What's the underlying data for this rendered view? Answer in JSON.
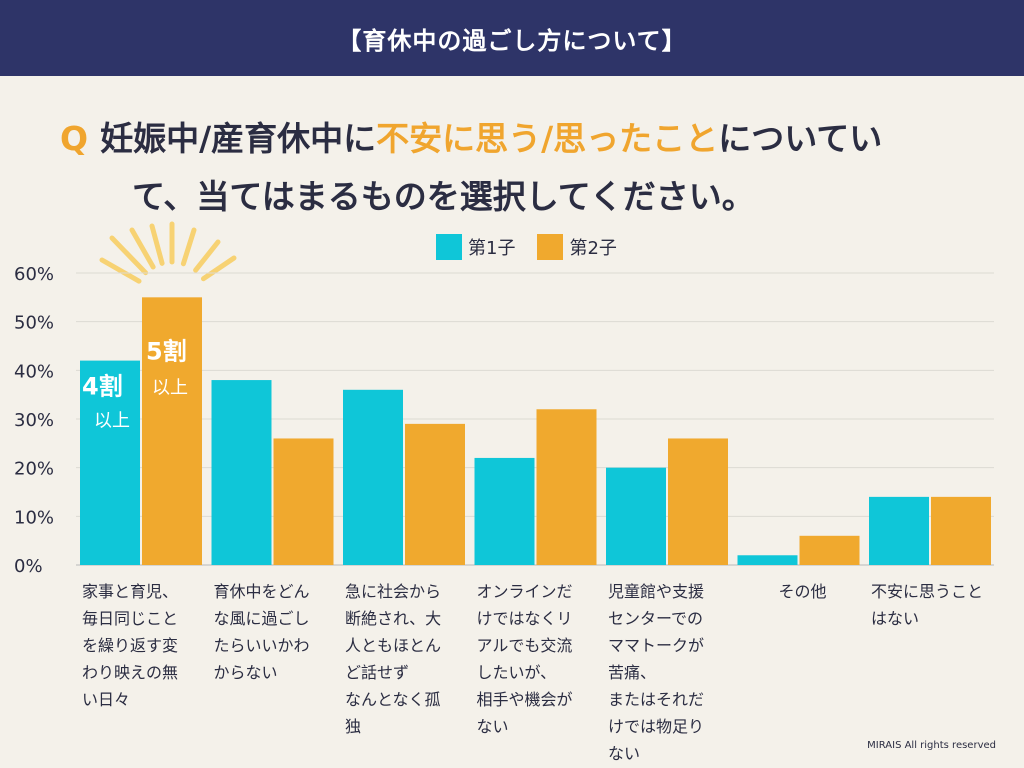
{
  "header": {
    "title": "【育休中の過ごし方について】"
  },
  "question": {
    "mark": "Q",
    "part1": "妊娠中/産育休中に",
    "highlight": "不安に思う/思ったこと",
    "part2": "についてい",
    "line2": "て、当てはまるものを選択してください。"
  },
  "colors": {
    "series1": "#0fc6d8",
    "series2": "#f0a92e",
    "accent": "#f0a52e",
    "banner": "#2e3468"
  },
  "chart_data": {
    "type": "bar",
    "title": "妊娠中/産育休中に不安に思う/思ったことについて、当てはまるものを選択してください。",
    "categories": [
      "家事と育児、\n毎日同じこと\nを繰り返す変\nわり映えの無\nい日々",
      "育休中をどん\nな風に過ごし\nたらいいかわ\nからない",
      "急に社会から\n断絶され、大\n人ともほとん\nど話せず\nなんとなく孤\n独",
      "オンラインだ\nけではなくリ\nアルでも交流\nしたいが、\n相手や機会が\nない",
      "児童館や支援\nセンターでの\nママトークが\n苦痛、\nまたはそれだ\nけでは物足り\nない",
      "その他",
      "不安に思うこと\nはない"
    ],
    "series": [
      {
        "name": "第1子",
        "values": [
          42,
          38,
          36,
          22,
          20,
          2,
          14
        ]
      },
      {
        "name": "第2子",
        "values": [
          55,
          26,
          29,
          32,
          26,
          6,
          14
        ]
      }
    ],
    "ylim": [
      0,
      60
    ],
    "yticks": [
      "0%",
      "10%",
      "20%",
      "30%",
      "40%",
      "50%",
      "60%"
    ],
    "legend": "top-center",
    "annotations": [
      {
        "series": 0,
        "category": 0,
        "main": "4割",
        "sub": "以上"
      },
      {
        "series": 1,
        "category": 0,
        "main": "5割",
        "sub": "以上"
      }
    ]
  },
  "footer": {
    "copyright": "MIRAIS All rights reserved"
  }
}
